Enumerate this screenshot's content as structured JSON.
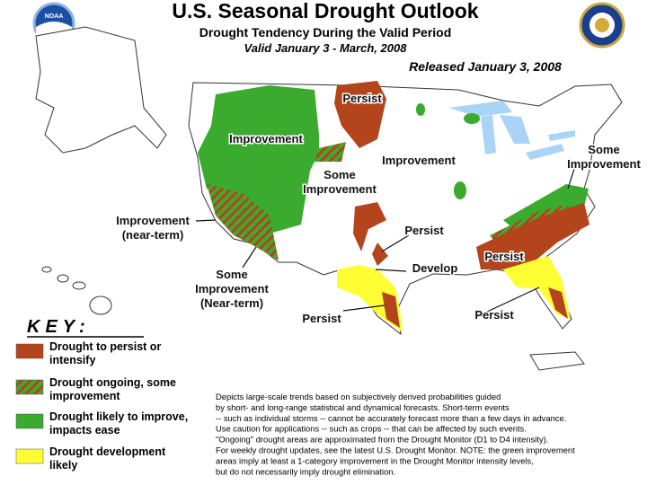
{
  "header": {
    "title": "U.S. Seasonal Drought Outlook",
    "subtitle": "Drought Tendency During the Valid Period",
    "valid": "Valid January 3 - March, 2008",
    "released": "Released January 3, 2008",
    "logo": "NOAA"
  },
  "map_labels": [
    {
      "lines": [
        "Persist"
      ]
    },
    {
      "lines": [
        "Improvement"
      ]
    },
    {
      "lines": [
        "Some",
        "Improvement"
      ]
    },
    {
      "lines": [
        "Improvement"
      ]
    },
    {
      "lines": [
        "Some",
        "Improvement"
      ]
    },
    {
      "lines": [
        "Improvement",
        "(near-term)"
      ]
    },
    {
      "lines": [
        "Some",
        "Improvement",
        "(Near-term)"
      ]
    },
    {
      "lines": [
        "Persist"
      ]
    },
    {
      "lines": [
        "Develop"
      ]
    },
    {
      "lines": [
        "Persist"
      ]
    },
    {
      "lines": [
        "Persist"
      ]
    },
    {
      "lines": [
        "Persist"
      ]
    }
  ],
  "key": {
    "title": "KEY:",
    "items": [
      {
        "lines": [
          "Drought to persist or",
          "intensify"
        ],
        "color": "#b4441c"
      },
      {
        "lines": [
          "Drought ongoing, some",
          "improvement"
        ],
        "color": "hatch"
      },
      {
        "lines": [
          "Drought likely to improve,",
          "impacts ease"
        ],
        "color": "#3aab2f"
      },
      {
        "lines": [
          "Drought development",
          "likely"
        ],
        "color": "#ffff33"
      }
    ]
  },
  "description": [
    "Depicts large-scale trends based on subjectively derived probabilities guided",
    "by short- and long-range statistical and dynamical forecasts. Short-term events",
    "-- such as individual storms -- cannot be accurately forecast more than a few days in advance.",
    "Use caution for applications -- such as crops -- that can be affected by such events.",
    "\"Ongoing\" drought areas are approximated from the Drought Monitor (D1 to D4 intensity).",
    "For weekly drought updates, see the latest U.S. Drought Monitor. NOTE: the green improvement",
    "areas imply at least a 1-category improvement in the Drought Monitor intensity levels,",
    "but do not necessarily imply drought elimination."
  ]
}
